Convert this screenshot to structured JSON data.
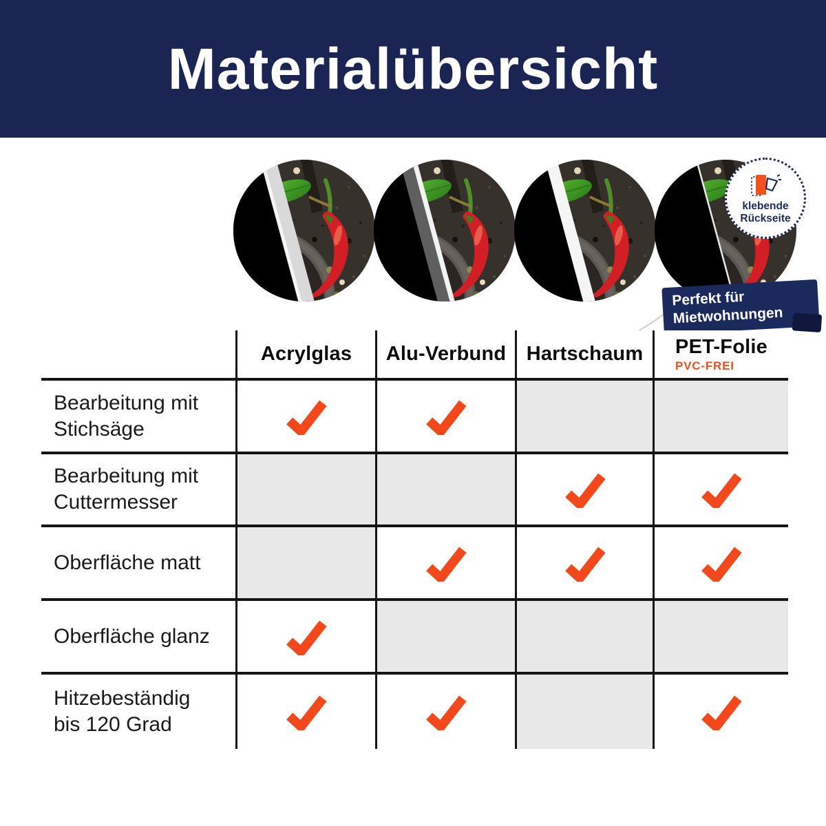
{
  "header": {
    "title": "Materialübersicht"
  },
  "badge": {
    "line1": "klebende",
    "line2": "Rückseite",
    "icon": "peel-off-sticker-icon"
  },
  "ribbon": {
    "line1": "Perfekt für",
    "line2": "Mietwohnungen"
  },
  "materials": [
    {
      "name": "Acrylglas",
      "sub": ""
    },
    {
      "name": "Alu-Verbund",
      "sub": ""
    },
    {
      "name": "Hartschaum",
      "sub": ""
    },
    {
      "name": "PET-Folie",
      "sub": "PVC-FREI"
    }
  ],
  "table": {
    "rows": [
      {
        "label": [
          "Bearbeitung mit",
          "Stichsäge"
        ],
        "checks": [
          true,
          true,
          false,
          false
        ]
      },
      {
        "label": [
          "Bearbeitung mit",
          "Cuttermesser"
        ],
        "checks": [
          false,
          false,
          true,
          true
        ]
      },
      {
        "label": [
          "Oberfläche matt"
        ],
        "checks": [
          false,
          true,
          true,
          true
        ]
      },
      {
        "label": [
          "Oberfläche glanz"
        ],
        "checks": [
          true,
          false,
          false,
          false
        ]
      },
      {
        "label": [
          "Hitzebeständig",
          "bis 120 Grad"
        ],
        "checks": [
          true,
          true,
          false,
          true
        ]
      }
    ]
  },
  "chart_data": {
    "type": "table",
    "title": "Materialübersicht",
    "columns": [
      "Acrylglas",
      "Alu-Verbund",
      "Hartschaum",
      "PET-Folie (PVC-FREI)"
    ],
    "rows": [
      {
        "label": "Bearbeitung mit Stichsäge",
        "values": [
          true,
          true,
          false,
          false
        ]
      },
      {
        "label": "Bearbeitung mit Cuttermesser",
        "values": [
          false,
          false,
          true,
          true
        ]
      },
      {
        "label": "Oberfläche matt",
        "values": [
          false,
          true,
          true,
          true
        ]
      },
      {
        "label": "Oberfläche glanz",
        "values": [
          true,
          false,
          false,
          false
        ]
      },
      {
        "label": "Hitzebeständig bis 120 Grad",
        "values": [
          true,
          true,
          false,
          true
        ]
      }
    ],
    "cell_semantics": "orange check = property applies, gray cell = not applicable"
  },
  "colors": {
    "navy": "#1b2553",
    "ribbon_navy": "#1b2a5c",
    "check_orange": "#f2481c",
    "pvc_orange": "#e8511f",
    "na_gray": "#e8e8e8",
    "border_black": "#141414"
  },
  "icons": {
    "check": "check-icon",
    "badge": "peel-off-sticker-icon"
  }
}
